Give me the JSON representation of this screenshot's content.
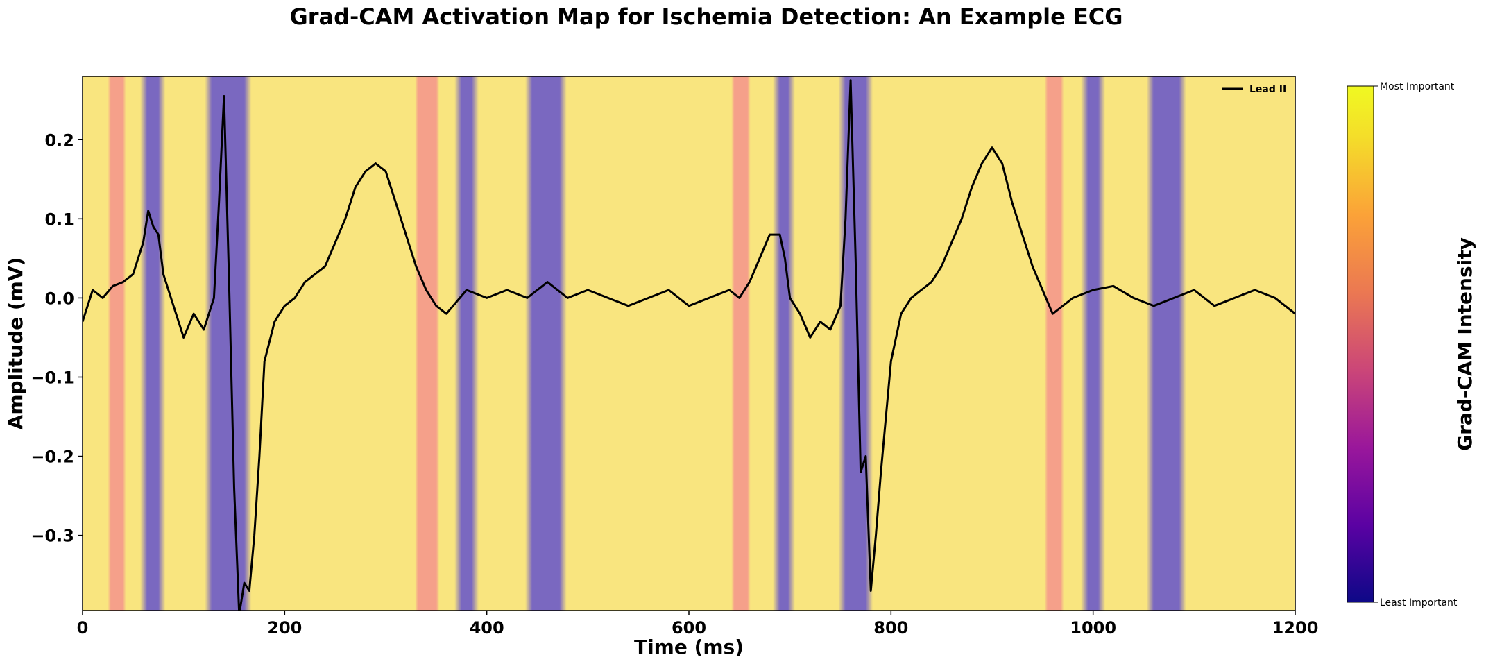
{
  "chart_data": {
    "type": "line",
    "title": "Grad-CAM Activation Map for Ischemia Detection: An Example ECG",
    "xlabel": "Time (ms)",
    "ylabel": "Amplitude (mV)",
    "xlim": [
      0,
      1200
    ],
    "ylim": [
      -0.395,
      0.28
    ],
    "x_ticks": [
      0,
      200,
      400,
      600,
      800,
      1000,
      1200
    ],
    "x_tick_labels": [
      "0",
      "200",
      "400",
      "600",
      "800",
      "1000",
      "1200"
    ],
    "y_ticks": [
      0.2,
      0.1,
      0.0,
      -0.1,
      -0.2,
      -0.3
    ],
    "y_tick_labels": [
      "0.2",
      "0.1",
      "0.0",
      "−0.1",
      "−0.2",
      "−0.3"
    ],
    "grid": false,
    "legend": {
      "position": "top-right",
      "entries": [
        "Lead II"
      ]
    },
    "series": [
      {
        "name": "Lead II",
        "color": "#000000",
        "x": [
          0,
          10,
          20,
          30,
          40,
          50,
          60,
          65,
          70,
          75,
          80,
          90,
          100,
          110,
          120,
          130,
          135,
          140,
          145,
          150,
          155,
          160,
          165,
          170,
          175,
          180,
          190,
          200,
          210,
          220,
          230,
          240,
          250,
          260,
          270,
          280,
          290,
          300,
          310,
          320,
          330,
          340,
          350,
          360,
          380,
          400,
          420,
          440,
          460,
          480,
          500,
          520,
          540,
          560,
          580,
          600,
          620,
          640,
          650,
          660,
          670,
          680,
          690,
          695,
          700,
          710,
          720,
          730,
          740,
          750,
          755,
          760,
          765,
          770,
          775,
          780,
          785,
          790,
          800,
          810,
          820,
          830,
          840,
          850,
          860,
          870,
          880,
          890,
          900,
          910,
          920,
          930,
          940,
          950,
          960,
          980,
          1000,
          1020,
          1040,
          1060,
          1080,
          1100,
          1120,
          1140,
          1160,
          1180,
          1200
        ],
        "values": [
          -0.03,
          0.01,
          0.0,
          0.015,
          0.02,
          0.03,
          0.07,
          0.11,
          0.09,
          0.08,
          0.03,
          -0.01,
          -0.05,
          -0.02,
          -0.04,
          0.0,
          0.12,
          0.255,
          0.02,
          -0.24,
          -0.4,
          -0.36,
          -0.37,
          -0.3,
          -0.2,
          -0.08,
          -0.03,
          -0.01,
          0.0,
          0.02,
          0.03,
          0.04,
          0.07,
          0.1,
          0.14,
          0.16,
          0.17,
          0.16,
          0.12,
          0.08,
          0.04,
          0.01,
          -0.01,
          -0.02,
          0.01,
          0.0,
          0.01,
          0.0,
          0.02,
          0.0,
          0.01,
          0.0,
          -0.01,
          0.0,
          0.01,
          -0.01,
          0.0,
          0.01,
          0.0,
          0.02,
          0.05,
          0.08,
          0.08,
          0.05,
          0.0,
          -0.02,
          -0.05,
          -0.03,
          -0.04,
          -0.01,
          0.1,
          0.275,
          0.05,
          -0.22,
          -0.2,
          -0.37,
          -0.3,
          -0.22,
          -0.08,
          -0.02,
          0.0,
          0.01,
          0.02,
          0.04,
          0.07,
          0.1,
          0.14,
          0.17,
          0.19,
          0.17,
          0.12,
          0.08,
          0.04,
          0.01,
          -0.02,
          0.0,
          0.01,
          0.015,
          0.0,
          -0.01,
          0.0,
          0.01,
          -0.01,
          0.0,
          0.01,
          0.0,
          -0.02
        ]
      }
    ],
    "heatmap": {
      "colormap": "plasma",
      "colors": {
        "low": "#0d0887",
        "base": "#f9e57f",
        "band": "#7a68c0",
        "soft": "#f5a08a",
        "high": "#f0f921"
      },
      "dark_bands": [
        [
          64,
          75
        ],
        [
          128,
          160
        ],
        [
          375,
          385
        ],
        [
          445,
          472
        ],
        [
          690,
          698
        ],
        [
          755,
          775
        ],
        [
          995,
          1005
        ],
        [
          1060,
          1085
        ]
      ],
      "soft_bands": [
        [
          28,
          40
        ],
        [
          332,
          350
        ],
        [
          645,
          658
        ],
        [
          955,
          968
        ]
      ]
    },
    "colorbar": {
      "label": "Grad-CAM Intensity",
      "ticks": [
        "Most Important",
        "Least Important"
      ]
    }
  }
}
